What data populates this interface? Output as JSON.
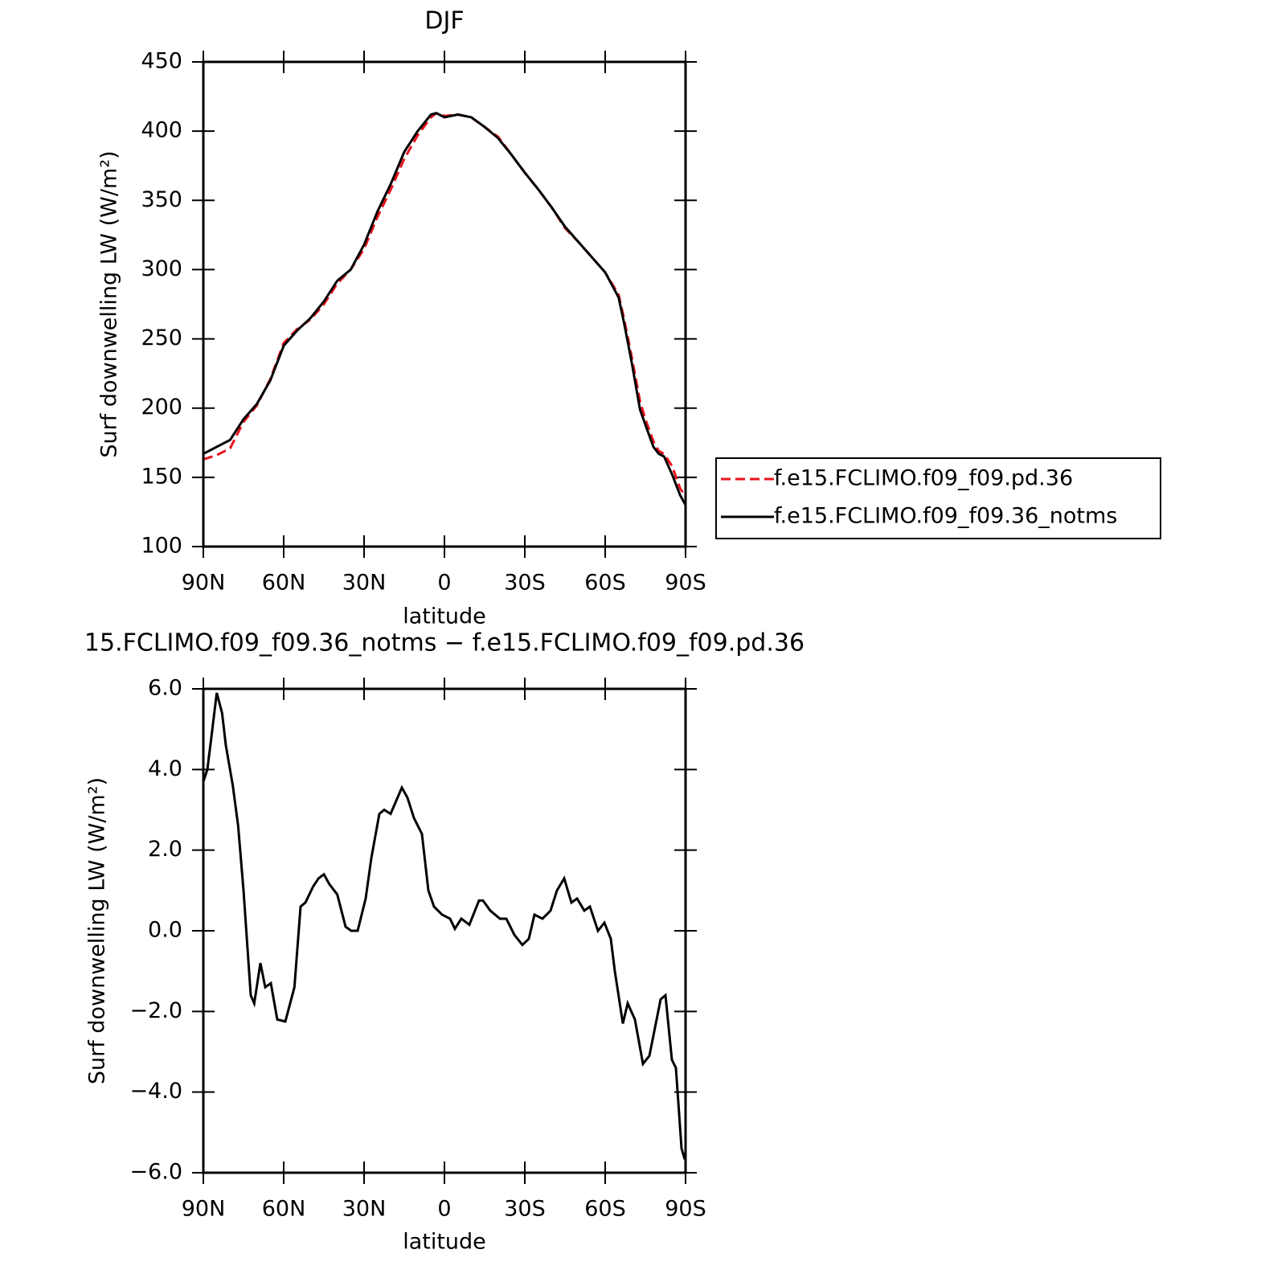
{
  "chart_data": [
    {
      "type": "line",
      "title": "DJF",
      "xlabel": "latitude",
      "ylabel": "Surf downwelling LW (W/m²)",
      "x": [
        90,
        85,
        80,
        75,
        70,
        65,
        60,
        55,
        50,
        45,
        40,
        35,
        30,
        25,
        20,
        15,
        10,
        5,
        3,
        0,
        -5,
        -10,
        -15,
        -20,
        -25,
        -30,
        -35,
        -40,
        -45,
        -50,
        -55,
        -60,
        -65,
        -67,
        -70,
        -73,
        -75,
        -78,
        -80,
        -82,
        -85,
        -88,
        -90
      ],
      "xlim": [
        90,
        -90
      ],
      "xticks": [
        {
          "value": 90,
          "label": "90N"
        },
        {
          "value": 60,
          "label": "60N"
        },
        {
          "value": 30,
          "label": "30N"
        },
        0,
        {
          "value": -30,
          "label": "30S"
        },
        {
          "value": -60,
          "label": "60S"
        },
        {
          "value": -90,
          "label": "90S"
        }
      ],
      "ylim": [
        100,
        450
      ],
      "yticks": [
        100,
        150,
        200,
        250,
        300,
        350,
        400,
        450
      ],
      "legend": "right",
      "series": [
        {
          "name": "f.e15.FCLIMO.f09_f09.pd.36",
          "color": "#e8141c",
          "line_style": "dashed",
          "values": [
            163,
            166,
            171,
            190,
            202,
            221,
            247,
            257,
            264,
            275,
            290,
            300,
            315,
            338,
            358,
            380,
            397,
            410,
            413,
            411,
            412,
            410,
            403,
            396,
            383,
            370,
            358,
            345,
            330,
            320,
            309,
            298,
            282,
            265,
            236,
            205,
            192,
            176,
            169,
            167,
            158,
            142,
            136
          ]
        },
        {
          "name": "f.e15.FCLIMO.f09_f09.36_notms",
          "color": "#000000",
          "line_style": "solid",
          "values": [
            167,
            172,
            177,
            192,
            203,
            220,
            245,
            256,
            265,
            277,
            292,
            300,
            318,
            342,
            362,
            385,
            400,
            412,
            413,
            410,
            412,
            410,
            403,
            395,
            383,
            370,
            358,
            345,
            331,
            320,
            309,
            298,
            280,
            262,
            232,
            199,
            188,
            172,
            167,
            165,
            152,
            137,
            130
          ]
        }
      ]
    },
    {
      "type": "line",
      "title": "15.FCLIMO.f09_f09.36_notms − f.e15.FCLIMO.f09_f09.pd.36",
      "xlabel": "latitude",
      "ylabel": "Surf downwelling LW (W/m²)",
      "x": [
        90,
        88.5,
        87,
        85,
        83,
        81.6,
        79,
        77,
        75,
        72.3,
        71,
        68.7,
        66.9,
        64.8,
        62.4,
        59.4,
        56,
        53.7,
        51.9,
        49,
        47,
        45,
        42.9,
        40,
        36.9,
        34.8,
        32.4,
        29.4,
        27.3,
        24.3,
        22.5,
        20.1,
        15.9,
        13.8,
        11.4,
        8.4,
        6,
        3.9,
        0.9,
        -2.1,
        -3.9,
        -6.3,
        -9.3,
        -12.9,
        -14.4,
        -17.1,
        -20.7,
        -23.1,
        -26.1,
        -29.1,
        -31.5,
        -33.6,
        -36.6,
        -39.6,
        -42,
        -44.7,
        -47.4,
        -49.5,
        -52.2,
        -54.3,
        -57.3,
        -59.7,
        -62.1,
        -63.6,
        -66.6,
        -68.4,
        -71.1,
        -74.1,
        -76.5,
        -80.7,
        -82.5,
        -84.9,
        -86.4,
        -88.5,
        -89.4,
        -90
      ],
      "xlim": [
        90,
        -90
      ],
      "xticks": [
        {
          "value": 90,
          "label": "90N"
        },
        {
          "value": 60,
          "label": "60N"
        },
        {
          "value": 30,
          "label": "30N"
        },
        0,
        {
          "value": -30,
          "label": "30S"
        },
        {
          "value": -60,
          "label": "60S"
        },
        {
          "value": -90,
          "label": "90S"
        }
      ],
      "ylim": [
        -6,
        6
      ],
      "yticks": [
        {
          "value": -6,
          "label": "−6.0"
        },
        {
          "value": -4,
          "label": "−4.0"
        },
        {
          "value": -2,
          "label": "−2.0"
        },
        {
          "value": 0,
          "label": "0.0"
        },
        {
          "value": 2,
          "label": "2.0"
        },
        {
          "value": 4,
          "label": "4.0"
        },
        {
          "value": 6,
          "label": "6.0"
        }
      ],
      "color": "#000000",
      "values": [
        3.7,
        4.0,
        4.8,
        5.9,
        5.4,
        4.6,
        3.6,
        2.6,
        1.0,
        -1.6,
        -1.8,
        -0.8,
        -1.4,
        -1.3,
        -2.2,
        -2.25,
        -1.4,
        0.6,
        0.7,
        1.1,
        1.3,
        1.4,
        1.15,
        0.9,
        0.1,
        0.0,
        0.0,
        0.8,
        1.8,
        2.9,
        3.0,
        2.9,
        3.55,
        3.3,
        2.8,
        2.4,
        1.0,
        0.6,
        0.4,
        0.3,
        0.05,
        0.3,
        0.15,
        0.75,
        0.75,
        0.5,
        0.3,
        0.3,
        -0.1,
        -0.35,
        -0.2,
        0.4,
        0.3,
        0.5,
        1.0,
        1.3,
        0.7,
        0.8,
        0.5,
        0.6,
        0.0,
        0.2,
        -0.2,
        -1.0,
        -2.3,
        -1.8,
        -2.2,
        -3.3,
        -3.1,
        -1.7,
        -1.6,
        -3.2,
        -3.4,
        -5.4,
        -5.6,
        -5.5
      ]
    }
  ]
}
